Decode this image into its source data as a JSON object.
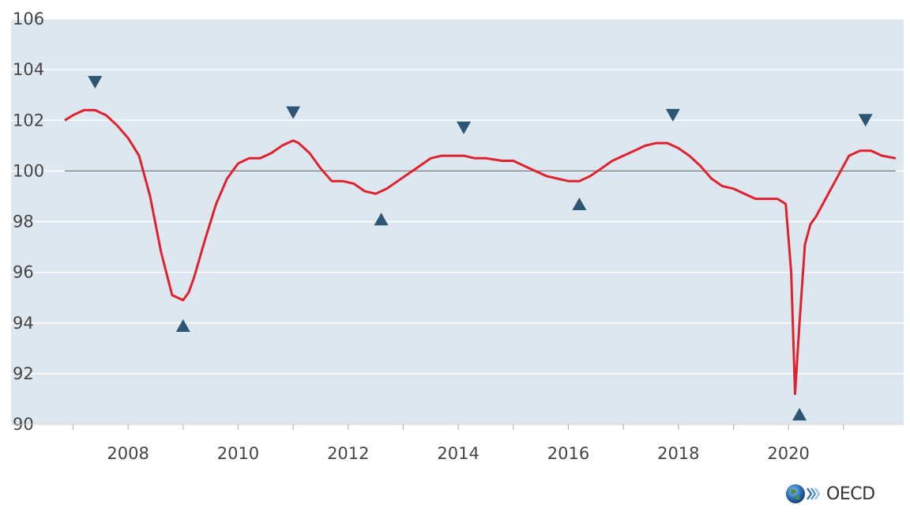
{
  "chart_data": {
    "type": "line",
    "title": "",
    "xlabel": "",
    "ylabel": "",
    "xlim": [
      2006.85,
      2021.95
    ],
    "ylim": [
      90,
      106
    ],
    "y_ticks": [
      90,
      92,
      94,
      96,
      98,
      100,
      102,
      104,
      106
    ],
    "x_ticks": [
      2008,
      2010,
      2012,
      2014,
      2016,
      2018,
      2020
    ],
    "reference_line": 100,
    "grid": true,
    "background_color": "#dde7ef",
    "line_color": "#e0212e",
    "marker_color": "#2c5673",
    "series": [
      {
        "values_x": [
          2006.85,
          2007.0,
          2007.2,
          2007.4,
          2007.6,
          2007.8,
          2008.0,
          2008.2,
          2008.4,
          2008.6,
          2008.8,
          2009.0,
          2009.1,
          2009.2,
          2009.4,
          2009.6,
          2009.8,
          2010.0,
          2010.2,
          2010.4,
          2010.6,
          2010.8,
          2011.0,
          2011.1,
          2011.3,
          2011.5,
          2011.7,
          2011.9,
          2012.1,
          2012.3,
          2012.5,
          2012.7,
          2012.9,
          2013.1,
          2013.3,
          2013.5,
          2013.7,
          2013.9,
          2014.1,
          2014.3,
          2014.5,
          2014.8,
          2015.0,
          2015.2,
          2015.4,
          2015.6,
          2015.8,
          2016.0,
          2016.2,
          2016.4,
          2016.6,
          2016.8,
          2017.0,
          2017.2,
          2017.4,
          2017.6,
          2017.8,
          2018.0,
          2018.2,
          2018.4,
          2018.6,
          2018.8,
          2019.0,
          2019.2,
          2019.4,
          2019.6,
          2019.8,
          2019.95,
          2020.05,
          2020.12,
          2020.2,
          2020.3,
          2020.4,
          2020.5,
          2020.7,
          2020.9,
          2021.1,
          2021.3,
          2021.5,
          2021.7,
          2021.95
        ],
        "values_y": [
          102.0,
          102.2,
          102.4,
          102.4,
          102.2,
          101.8,
          101.3,
          100.6,
          99.0,
          96.8,
          95.1,
          94.9,
          95.2,
          95.8,
          97.3,
          98.7,
          99.7,
          100.3,
          100.5,
          100.5,
          100.7,
          101.0,
          101.2,
          101.1,
          100.7,
          100.1,
          99.6,
          99.6,
          99.5,
          99.2,
          99.1,
          99.3,
          99.6,
          99.9,
          100.2,
          100.5,
          100.6,
          100.6,
          100.6,
          100.5,
          100.5,
          100.4,
          100.4,
          100.2,
          100.0,
          99.8,
          99.7,
          99.6,
          99.6,
          99.8,
          100.1,
          100.4,
          100.6,
          100.8,
          101.0,
          101.1,
          101.1,
          100.9,
          100.6,
          100.2,
          99.7,
          99.4,
          99.3,
          99.1,
          98.9,
          98.9,
          98.9,
          98.7,
          96.0,
          91.2,
          94.0,
          97.1,
          97.9,
          98.2,
          99.0,
          99.8,
          100.6,
          100.8,
          100.8,
          100.6,
          100.5
        ]
      }
    ],
    "markers": [
      {
        "kind": "peak",
        "x": 2007.4,
        "y": 103.5
      },
      {
        "kind": "trough",
        "x": 2009.0,
        "y": 93.9
      },
      {
        "kind": "peak",
        "x": 2011.0,
        "y": 102.3
      },
      {
        "kind": "trough",
        "x": 2012.6,
        "y": 98.1
      },
      {
        "kind": "peak",
        "x": 2014.1,
        "y": 101.7
      },
      {
        "kind": "trough",
        "x": 2016.2,
        "y": 98.7
      },
      {
        "kind": "peak",
        "x": 2017.9,
        "y": 102.2
      },
      {
        "kind": "trough",
        "x": 2020.2,
        "y": 90.4
      },
      {
        "kind": "peak",
        "x": 2021.4,
        "y": 102.0
      }
    ]
  },
  "logo": {
    "text": "OECD"
  }
}
